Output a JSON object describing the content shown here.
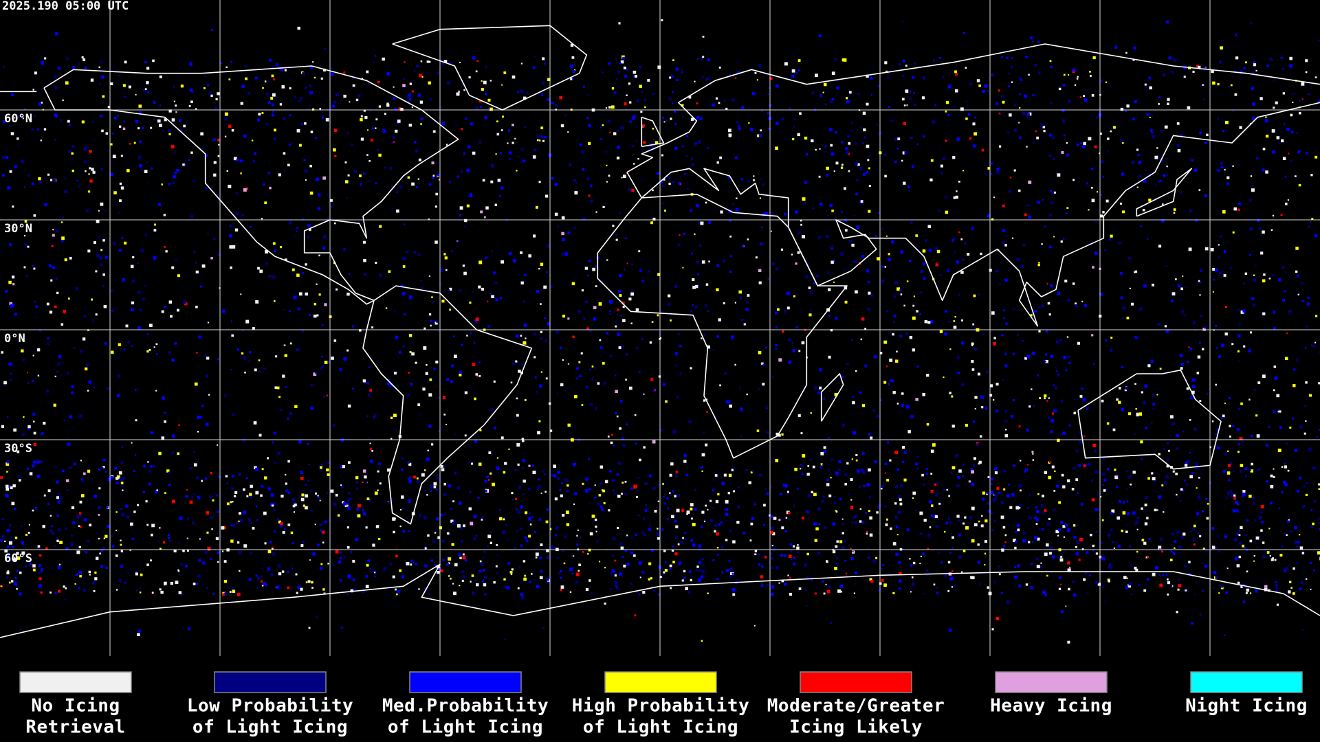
{
  "timestamp": "2025.190 05:00 UTC",
  "latitude_labels": [
    "60°N",
    "30°N",
    "0°N",
    "30°S",
    "60°S"
  ],
  "legend": [
    {
      "lines": [
        "No Icing",
        "Retrieval"
      ],
      "color": "#f0f0f0"
    },
    {
      "lines": [
        "Low Probability",
        "of Light Icing"
      ],
      "color": "#000080"
    },
    {
      "lines": [
        "Med.Probability",
        "of Light Icing"
      ],
      "color": "#0000ff"
    },
    {
      "lines": [
        "High Probability",
        "of Light Icing"
      ],
      "color": "#ffff00"
    },
    {
      "lines": [
        "Moderate/Greater",
        "Icing Likely"
      ],
      "color": "#ff0000"
    },
    {
      "lines": [
        "Heavy Icing"
      ],
      "color": "#e0a0e0"
    },
    {
      "lines": [
        "Night Icing"
      ],
      "color": "#00ffff"
    }
  ]
}
